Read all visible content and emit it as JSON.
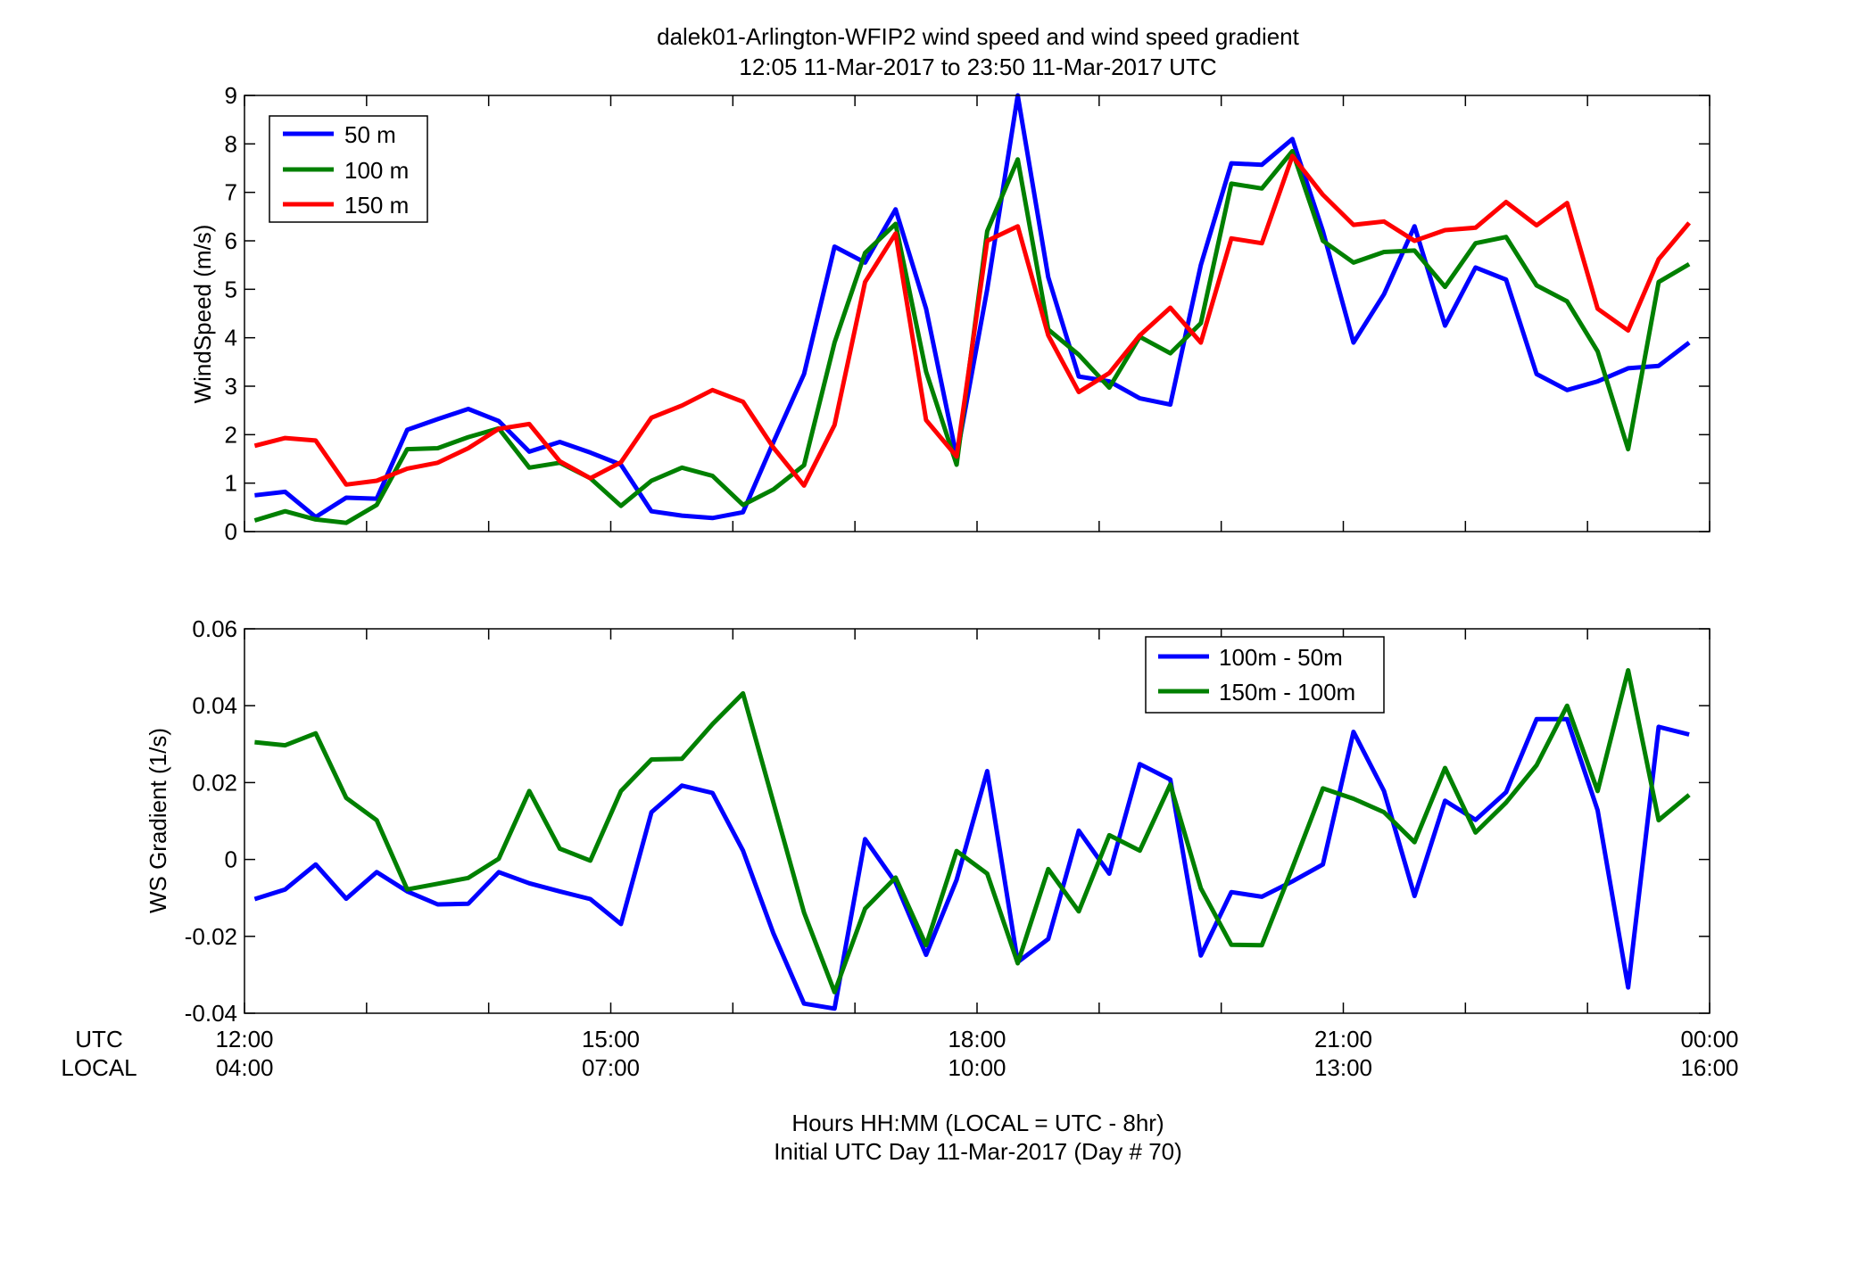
{
  "title_line1": "dalek01-Arlington-WFIP2  wind speed and wind speed gradient",
  "title_line2": "12:05 11-Mar-2017 to 23:50 11-Mar-2017  UTC",
  "row_labels": {
    "utc": "UTC",
    "local": "LOCAL"
  },
  "xlabel_line1": "Hours HH:MM  (LOCAL = UTC - 8hr)",
  "xlabel_line2": "Initial UTC Day 11-Mar-2017 (Day # 70)",
  "x_ticks_utc": [
    "12:00",
    "15:00",
    "18:00",
    "21:00",
    "00:00"
  ],
  "x_ticks_local": [
    "04:00",
    "07:00",
    "10:00",
    "13:00",
    "16:00"
  ],
  "colors": {
    "blue": "#0000ff",
    "green": "#008000",
    "red": "#ff0000"
  },
  "chart_data": [
    {
      "type": "line",
      "ylabel": "WindSpeed (m/s)",
      "xlim": [
        0,
        12
      ],
      "ylim": [
        0,
        9
      ],
      "y_ticks": [
        "0",
        "1",
        "2",
        "3",
        "4",
        "5",
        "6",
        "7",
        "8",
        "9"
      ],
      "legend_position": "top-left",
      "x": [
        0.083,
        0.333,
        0.583,
        0.833,
        1.083,
        1.333,
        1.583,
        1.833,
        2.083,
        2.333,
        2.583,
        2.833,
        3.083,
        3.333,
        3.583,
        3.833,
        4.083,
        4.333,
        4.583,
        4.833,
        5.083,
        5.333,
        5.583,
        5.833,
        6.083,
        6.333,
        6.583,
        6.833,
        7.083,
        7.333,
        7.583,
        7.833,
        8.083,
        8.333,
        8.583,
        8.833,
        9.083,
        9.333,
        9.583,
        9.833,
        10.083,
        10.333,
        10.583,
        10.833,
        11.083,
        11.333,
        11.583,
        11.833
      ],
      "series": [
        {
          "name": "50 m",
          "color": "#0000ff",
          "values": [
            0.75,
            0.82,
            0.3,
            0.7,
            0.68,
            2.1,
            2.32,
            2.53,
            2.28,
            1.65,
            1.85,
            1.63,
            1.38,
            0.42,
            0.33,
            0.28,
            0.4,
            1.85,
            3.25,
            5.88,
            5.55,
            6.65,
            4.6,
            1.55,
            5.0,
            9.0,
            5.25,
            3.2,
            3.1,
            2.75,
            2.62,
            5.5,
            7.6,
            7.57,
            8.1,
            6.2,
            3.9,
            4.9,
            6.3,
            4.25,
            5.45,
            5.2,
            3.25,
            2.92,
            3.1,
            3.37,
            3.42,
            3.9
          ]
        },
        {
          "name": "100 m",
          "color": "#008000",
          "values": [
            0.23,
            0.42,
            0.25,
            0.18,
            0.55,
            1.7,
            1.72,
            1.95,
            2.13,
            1.32,
            1.42,
            1.1,
            0.53,
            1.05,
            1.32,
            1.15,
            0.55,
            0.87,
            1.37,
            3.9,
            5.75,
            6.35,
            3.3,
            1.38,
            6.2,
            7.68,
            4.17,
            3.65,
            2.97,
            4.02,
            3.68,
            4.3,
            7.18,
            7.08,
            7.85,
            6.0,
            5.55,
            5.77,
            5.8,
            5.05,
            5.95,
            6.08,
            5.08,
            4.75,
            3.72,
            1.7,
            5.15,
            5.52
          ]
        },
        {
          "name": "150 m",
          "color": "#ff0000",
          "values": [
            1.77,
            1.93,
            1.88,
            0.97,
            1.05,
            1.3,
            1.42,
            1.72,
            2.12,
            2.22,
            1.45,
            1.1,
            1.43,
            2.35,
            2.6,
            2.92,
            2.68,
            1.73,
            0.95,
            2.2,
            5.15,
            6.15,
            2.3,
            1.55,
            6.0,
            6.3,
            4.05,
            2.88,
            3.27,
            4.05,
            4.62,
            3.9,
            6.05,
            5.95,
            7.75,
            6.95,
            6.33,
            6.4,
            6.0,
            6.22,
            6.27,
            6.8,
            6.32,
            6.78,
            4.6,
            4.15,
            5.62,
            6.37
          ]
        }
      ]
    },
    {
      "type": "line",
      "ylabel": "WS Gradient (1/s)",
      "xlim": [
        0,
        12
      ],
      "ylim": [
        -0.04,
        0.06
      ],
      "y_ticks": [
        "-0.04",
        "-0.02",
        "0",
        "0.02",
        "0.04",
        "0.06"
      ],
      "legend_position": "top-right",
      "x": [
        0.083,
        0.333,
        0.583,
        0.833,
        1.083,
        1.333,
        1.583,
        1.833,
        2.083,
        2.333,
        2.583,
        2.833,
        3.083,
        3.333,
        3.583,
        3.833,
        4.083,
        4.333,
        4.583,
        4.833,
        5.083,
        5.333,
        5.583,
        5.833,
        6.083,
        6.333,
        6.583,
        6.833,
        7.083,
        7.333,
        7.583,
        7.833,
        8.083,
        8.333,
        8.583,
        8.833,
        9.083,
        9.333,
        9.583,
        9.833,
        10.083,
        10.333,
        10.583,
        10.833,
        11.083,
        11.333,
        11.583,
        11.833
      ],
      "series": [
        {
          "name": "100m - 50m",
          "color": "#0000ff",
          "values": [
            -0.0103,
            -0.0078,
            -0.0013,
            -0.0102,
            -0.0033,
            -0.0083,
            -0.0117,
            -0.0115,
            -0.0033,
            -0.0062,
            -0.0083,
            -0.0103,
            -0.0168,
            0.0123,
            0.0192,
            0.0173,
            0.0023,
            -0.0193,
            -0.0375,
            -0.0388,
            0.0053,
            -0.006,
            -0.0248,
            -0.0053,
            0.023,
            -0.0267,
            -0.0207,
            0.0075,
            -0.0037,
            0.0248,
            0.0208,
            -0.025,
            -0.0085,
            -0.0097,
            -0.0057,
            -0.0013,
            0.0332,
            0.0178,
            -0.0095,
            0.0153,
            0.0103,
            0.0175,
            0.0365,
            0.0365,
            0.0128,
            -0.0333,
            0.0345,
            0.0325
          ]
        },
        {
          "name": "150m - 100m",
          "color": "#008000",
          "values": [
            0.0305,
            0.0297,
            0.0328,
            0.016,
            0.0102,
            -0.0078,
            -0.0063,
            -0.0048,
            0.0002,
            0.0178,
            0.0028,
            -0.0003,
            0.0178,
            0.026,
            0.0262,
            0.0352,
            0.0432,
            0.0147,
            -0.0138,
            -0.0345,
            -0.0128,
            -0.0047,
            -0.0223,
            0.0022,
            -0.0037,
            -0.027,
            -0.0025,
            -0.0135,
            0.0063,
            0.0023,
            0.0195,
            -0.0075,
            -0.0222,
            -0.0223,
            -0.0022,
            0.0185,
            0.0158,
            0.0123,
            0.0045,
            0.0238,
            0.007,
            0.0148,
            0.0245,
            0.04,
            0.0178,
            0.0492,
            0.0102,
            0.0168
          ]
        }
      ]
    }
  ]
}
